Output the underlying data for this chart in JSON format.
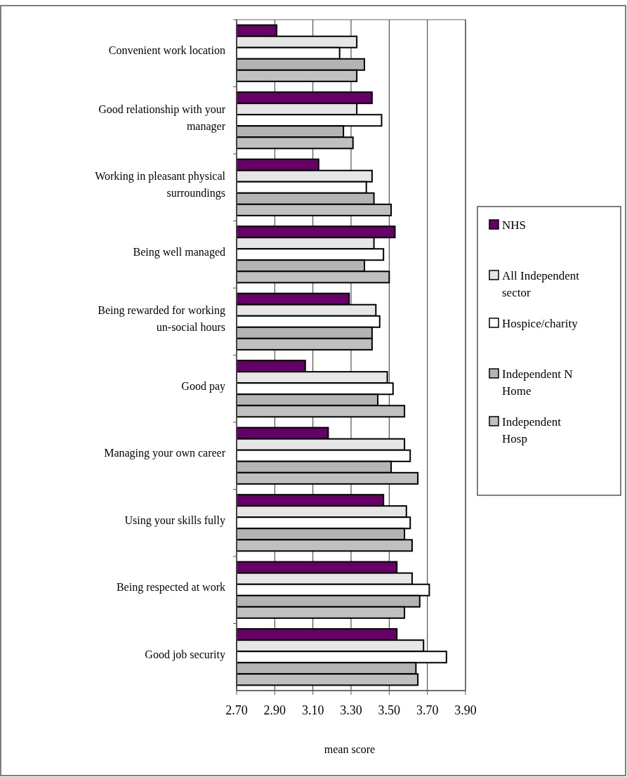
{
  "chart_data": {
    "type": "bar",
    "orientation": "horizontal",
    "xlabel": "mean score",
    "categories": [
      "Convenient work location",
      "Good relationship with your manager",
      "Working in pleasant physical surroundings",
      "Being well managed",
      "Being rewarded for working un-social hours",
      "Good pay",
      "Managing your own career",
      "Using your skills fully",
      "Being respected at work",
      "Good job security"
    ],
    "series": [
      {
        "name": "NHS",
        "color": "#660066",
        "values": [
          2.91,
          3.41,
          3.13,
          3.53,
          3.29,
          3.06,
          3.18,
          3.47,
          3.54,
          3.54
        ]
      },
      {
        "name": "All Independent sector",
        "color": "#e6e6e6",
        "values": [
          3.33,
          3.33,
          3.41,
          3.42,
          3.43,
          3.49,
          3.58,
          3.59,
          3.62,
          3.68
        ]
      },
      {
        "name": "Hospice/charity",
        "color": "#ffffff",
        "values": [
          3.24,
          3.46,
          3.38,
          3.47,
          3.45,
          3.52,
          3.61,
          3.61,
          3.71,
          3.8
        ]
      },
      {
        "name": "Independent N Home",
        "color": "#b4b4b4",
        "values": [
          3.37,
          3.26,
          3.42,
          3.37,
          3.41,
          3.44,
          3.51,
          3.58,
          3.66,
          3.64
        ]
      },
      {
        "name": "Independent Hosp",
        "color": "#c0c0c0",
        "values": [
          3.33,
          3.31,
          3.51,
          3.5,
          3.41,
          3.58,
          3.65,
          3.62,
          3.58,
          3.65
        ]
      }
    ],
    "xlim": [
      2.7,
      3.9
    ],
    "xticks": [
      {
        "value": 2.7,
        "label": "2.70"
      },
      {
        "value": 2.9,
        "label": "2.90"
      },
      {
        "value": 3.1,
        "label": "3.10"
      },
      {
        "value": 3.3,
        "label": "3.30"
      },
      {
        "value": 3.5,
        "label": "3.50"
      },
      {
        "value": 3.7,
        "label": "3.70"
      },
      {
        "value": 3.9,
        "label": "3.90"
      }
    ],
    "grid": "x",
    "legend": "right"
  }
}
